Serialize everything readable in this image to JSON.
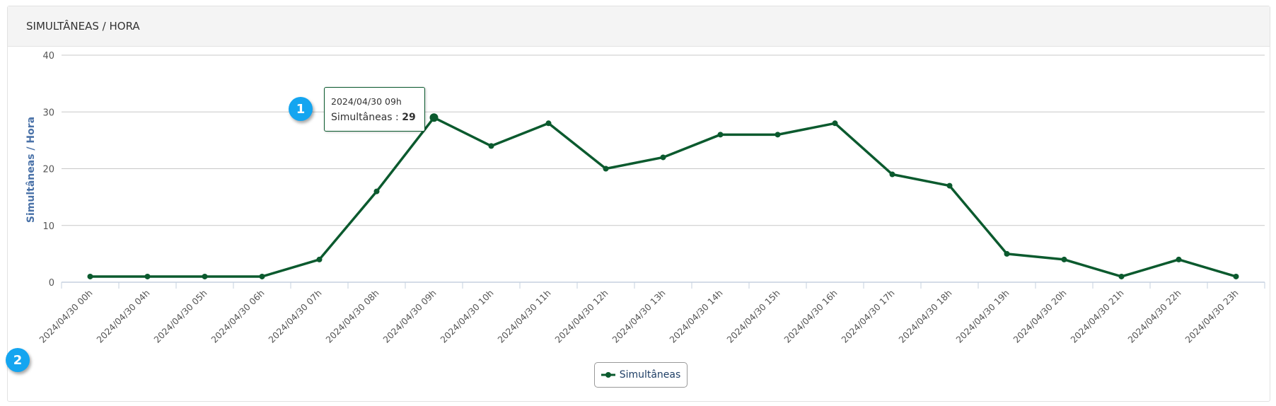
{
  "header": {
    "title": "SIMULTÂNEAS / HORA"
  },
  "tooltip": {
    "date": "2024/04/30 09h",
    "label": "Simultâneas :",
    "value": "29"
  },
  "badges": [
    "1",
    "2"
  ],
  "colors": {
    "line": "#0b5a2e",
    "axis_title": "#4a72a8",
    "badge": "#14a5f0"
  },
  "chart_data": {
    "type": "line",
    "title": "SIMULTÂNEAS / HORA",
    "ylabel": "Simultâneas / Hora",
    "xlabel": "",
    "ylim": [
      0,
      40
    ],
    "yticks": [
      "0",
      "10",
      "20",
      "30",
      "40"
    ],
    "categories": [
      "2024/04/30 00h",
      "2024/04/30 04h",
      "2024/04/30 05h",
      "2024/04/30 06h",
      "2024/04/30 07h",
      "2024/04/30 08h",
      "2024/04/30 09h",
      "2024/04/30 10h",
      "2024/04/30 11h",
      "2024/04/30 12h",
      "2024/04/30 13h",
      "2024/04/30 14h",
      "2024/04/30 15h",
      "2024/04/30 16h",
      "2024/04/30 17h",
      "2024/04/30 18h",
      "2024/04/30 19h",
      "2024/04/30 20h",
      "2024/04/30 21h",
      "2024/04/30 22h",
      "2024/04/30 23h"
    ],
    "series": [
      {
        "name": "Simultâneas",
        "values": [
          1,
          1,
          1,
          1,
          4,
          16,
          29,
          24,
          28,
          20,
          22,
          26,
          26,
          28,
          19,
          17,
          5,
          4,
          1,
          4,
          1
        ]
      }
    ],
    "legend": "bottom-center",
    "grid": true
  }
}
